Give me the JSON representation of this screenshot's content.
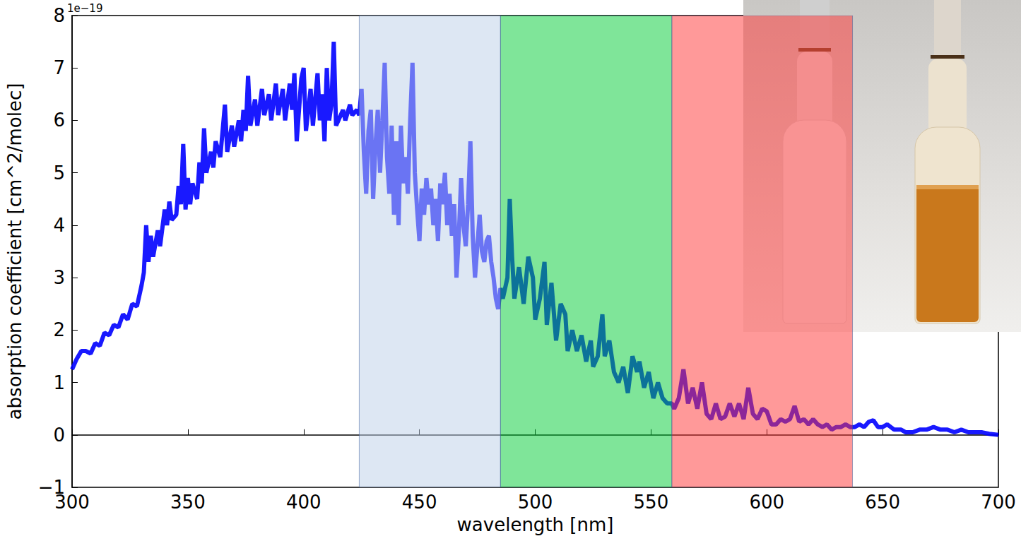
{
  "chart_data": {
    "type": "line",
    "x_label": "wavelength [nm]",
    "y_label": "absorption coefficient [cm^2/molec]",
    "annotations": [
      "1e−19"
    ],
    "color": "#0000ff",
    "grid": false,
    "xlim": [
      300,
      700
    ],
    "xticks": [
      300,
      350,
      400,
      450,
      500,
      550,
      600,
      650,
      700
    ],
    "ylim": [
      -1,
      8
    ],
    "yticks": [
      {
        "value": -1,
        "label": "−1"
      },
      0,
      1,
      2,
      3,
      4,
      5,
      6,
      7,
      8
    ],
    "regions": [
      {
        "from": 424,
        "to": 485,
        "color": "#bcd0e8"
      },
      {
        "from": 485,
        "to": 559,
        "color": "#00cc33"
      },
      {
        "from": 559,
        "to": 637,
        "color": "#ff3333"
      }
    ],
    "x": [
      300,
      302,
      304,
      306,
      308,
      310,
      312,
      314,
      316,
      318,
      320,
      322,
      324,
      326,
      328,
      330,
      331,
      332,
      333,
      334,
      335,
      337,
      338,
      340,
      341,
      342,
      343,
      345,
      346,
      347,
      348,
      349,
      350,
      351,
      352,
      354,
      355,
      356,
      357,
      358,
      360,
      361,
      362,
      364,
      366,
      367,
      369,
      370,
      372,
      373,
      374,
      375,
      376,
      377,
      379,
      380,
      382,
      383,
      385,
      386,
      388,
      389,
      391,
      392,
      394,
      395,
      396,
      397,
      399,
      400,
      401,
      403,
      404,
      406,
      407,
      408,
      409,
      410,
      411,
      412,
      413,
      414,
      415,
      417,
      418,
      420,
      421,
      423,
      424,
      425,
      426,
      427,
      428,
      429,
      430,
      431,
      432,
      433,
      434,
      435,
      436,
      437,
      438,
      439,
      440,
      441,
      442,
      443,
      444,
      445,
      446,
      447,
      448,
      449,
      450,
      451,
      452,
      453,
      454,
      455,
      456,
      457,
      458,
      459,
      460,
      461,
      462,
      463,
      464,
      465,
      466,
      467,
      468,
      469,
      470,
      471,
      472,
      473,
      474,
      475,
      476,
      477,
      478,
      479,
      480,
      481,
      482,
      483,
      484,
      485,
      486,
      488,
      489,
      490,
      491,
      493,
      495,
      497,
      499,
      500,
      502,
      504,
      505,
      507,
      509,
      511,
      513,
      514,
      516,
      518,
      520,
      522,
      524,
      525,
      527,
      529,
      530,
      532,
      534,
      536,
      538,
      540,
      542,
      544,
      545,
      547,
      549,
      551,
      553,
      555,
      557,
      559,
      560,
      562,
      564,
      566,
      568,
      570,
      572,
      574,
      576,
      578,
      580,
      582,
      584,
      586,
      588,
      590,
      592,
      594,
      596,
      598,
      600,
      602,
      604,
      606,
      608,
      610,
      612,
      614,
      616,
      618,
      620,
      622,
      624,
      626,
      628,
      630,
      632,
      634,
      636,
      638,
      640,
      642,
      644,
      646,
      648,
      650,
      652,
      655,
      658,
      660,
      663,
      666,
      669,
      672,
      675,
      678,
      681,
      684,
      687,
      690,
      693,
      696,
      700
    ],
    "values": [
      1.25,
      1.45,
      1.6,
      1.6,
      1.55,
      1.75,
      1.7,
      1.95,
      1.9,
      2.1,
      2.05,
      2.3,
      2.2,
      2.5,
      2.45,
      2.85,
      3.1,
      4.0,
      3.3,
      3.8,
      3.4,
      3.9,
      3.6,
      4.3,
      4.0,
      4.45,
      4.1,
      4.2,
      4.75,
      4.4,
      5.55,
      4.3,
      4.9,
      4.4,
      4.8,
      4.5,
      5.2,
      4.8,
      5.85,
      5.0,
      5.4,
      5.1,
      5.6,
      5.3,
      6.3,
      5.4,
      5.9,
      5.5,
      6.0,
      5.6,
      6.2,
      5.8,
      6.85,
      5.9,
      6.4,
      5.9,
      6.6,
      6.1,
      6.5,
      6.0,
      6.7,
      6.1,
      6.6,
      6.0,
      6.7,
      6.2,
      6.9,
      5.6,
      6.8,
      7.0,
      5.8,
      6.6,
      5.9,
      6.9,
      6.0,
      6.5,
      5.6,
      7.0,
      6.0,
      6.3,
      7.5,
      5.9,
      6.0,
      6.2,
      6.0,
      6.3,
      6.1,
      6.2,
      6.1,
      6.6,
      5.4,
      4.6,
      5.8,
      6.2,
      4.5,
      5.5,
      6.2,
      5.0,
      6.0,
      7.1,
      5.3,
      4.6,
      5.9,
      4.2,
      5.6,
      4.0,
      5.9,
      4.8,
      5.3,
      4.6,
      6.0,
      7.1,
      5.0,
      4.3,
      3.7,
      4.7,
      4.2,
      4.9,
      4.4,
      4.7,
      4.0,
      4.5,
      3.7,
      4.8,
      4.4,
      5.0,
      4.0,
      4.6,
      3.8,
      4.4,
      3.0,
      3.8,
      4.9,
      4.0,
      3.6,
      4.4,
      5.6,
      3.8,
      3.0,
      3.6,
      4.2,
      3.5,
      3.3,
      3.7,
      3.8,
      3.3,
      3.0,
      2.6,
      2.4,
      2.8,
      2.6,
      3.0,
      4.5,
      3.4,
      2.6,
      3.2,
      2.5,
      3.4,
      3.0,
      2.2,
      2.6,
      3.3,
      2.1,
      2.9,
      1.8,
      2.5,
      2.3,
      1.6,
      2.0,
      1.6,
      1.9,
      1.4,
      1.8,
      1.3,
      1.5,
      2.3,
      1.5,
      1.8,
      1.2,
      1.0,
      1.3,
      0.8,
      1.5,
      1.2,
      1.4,
      0.9,
      1.2,
      0.7,
      1.0,
      0.7,
      0.6,
      0.6,
      0.5,
      0.7,
      1.25,
      0.6,
      0.9,
      0.5,
      1.0,
      0.4,
      0.3,
      0.6,
      0.3,
      0.35,
      0.6,
      0.35,
      0.6,
      0.3,
      0.9,
      0.4,
      0.3,
      0.5,
      0.45,
      0.2,
      0.2,
      0.3,
      0.25,
      0.3,
      0.55,
      0.25,
      0.3,
      0.2,
      0.3,
      0.2,
      0.15,
      0.2,
      0.1,
      0.15,
      0.15,
      0.2,
      0.15,
      0.15,
      0.2,
      0.15,
      0.25,
      0.28,
      0.15,
      0.15,
      0.2,
      0.1,
      0.1,
      0.05,
      0.05,
      0.1,
      0.1,
      0.15,
      0.1,
      0.1,
      0.05,
      0.1,
      0.05,
      0.05,
      0.05,
      0.02,
      0.0
    ]
  }
}
